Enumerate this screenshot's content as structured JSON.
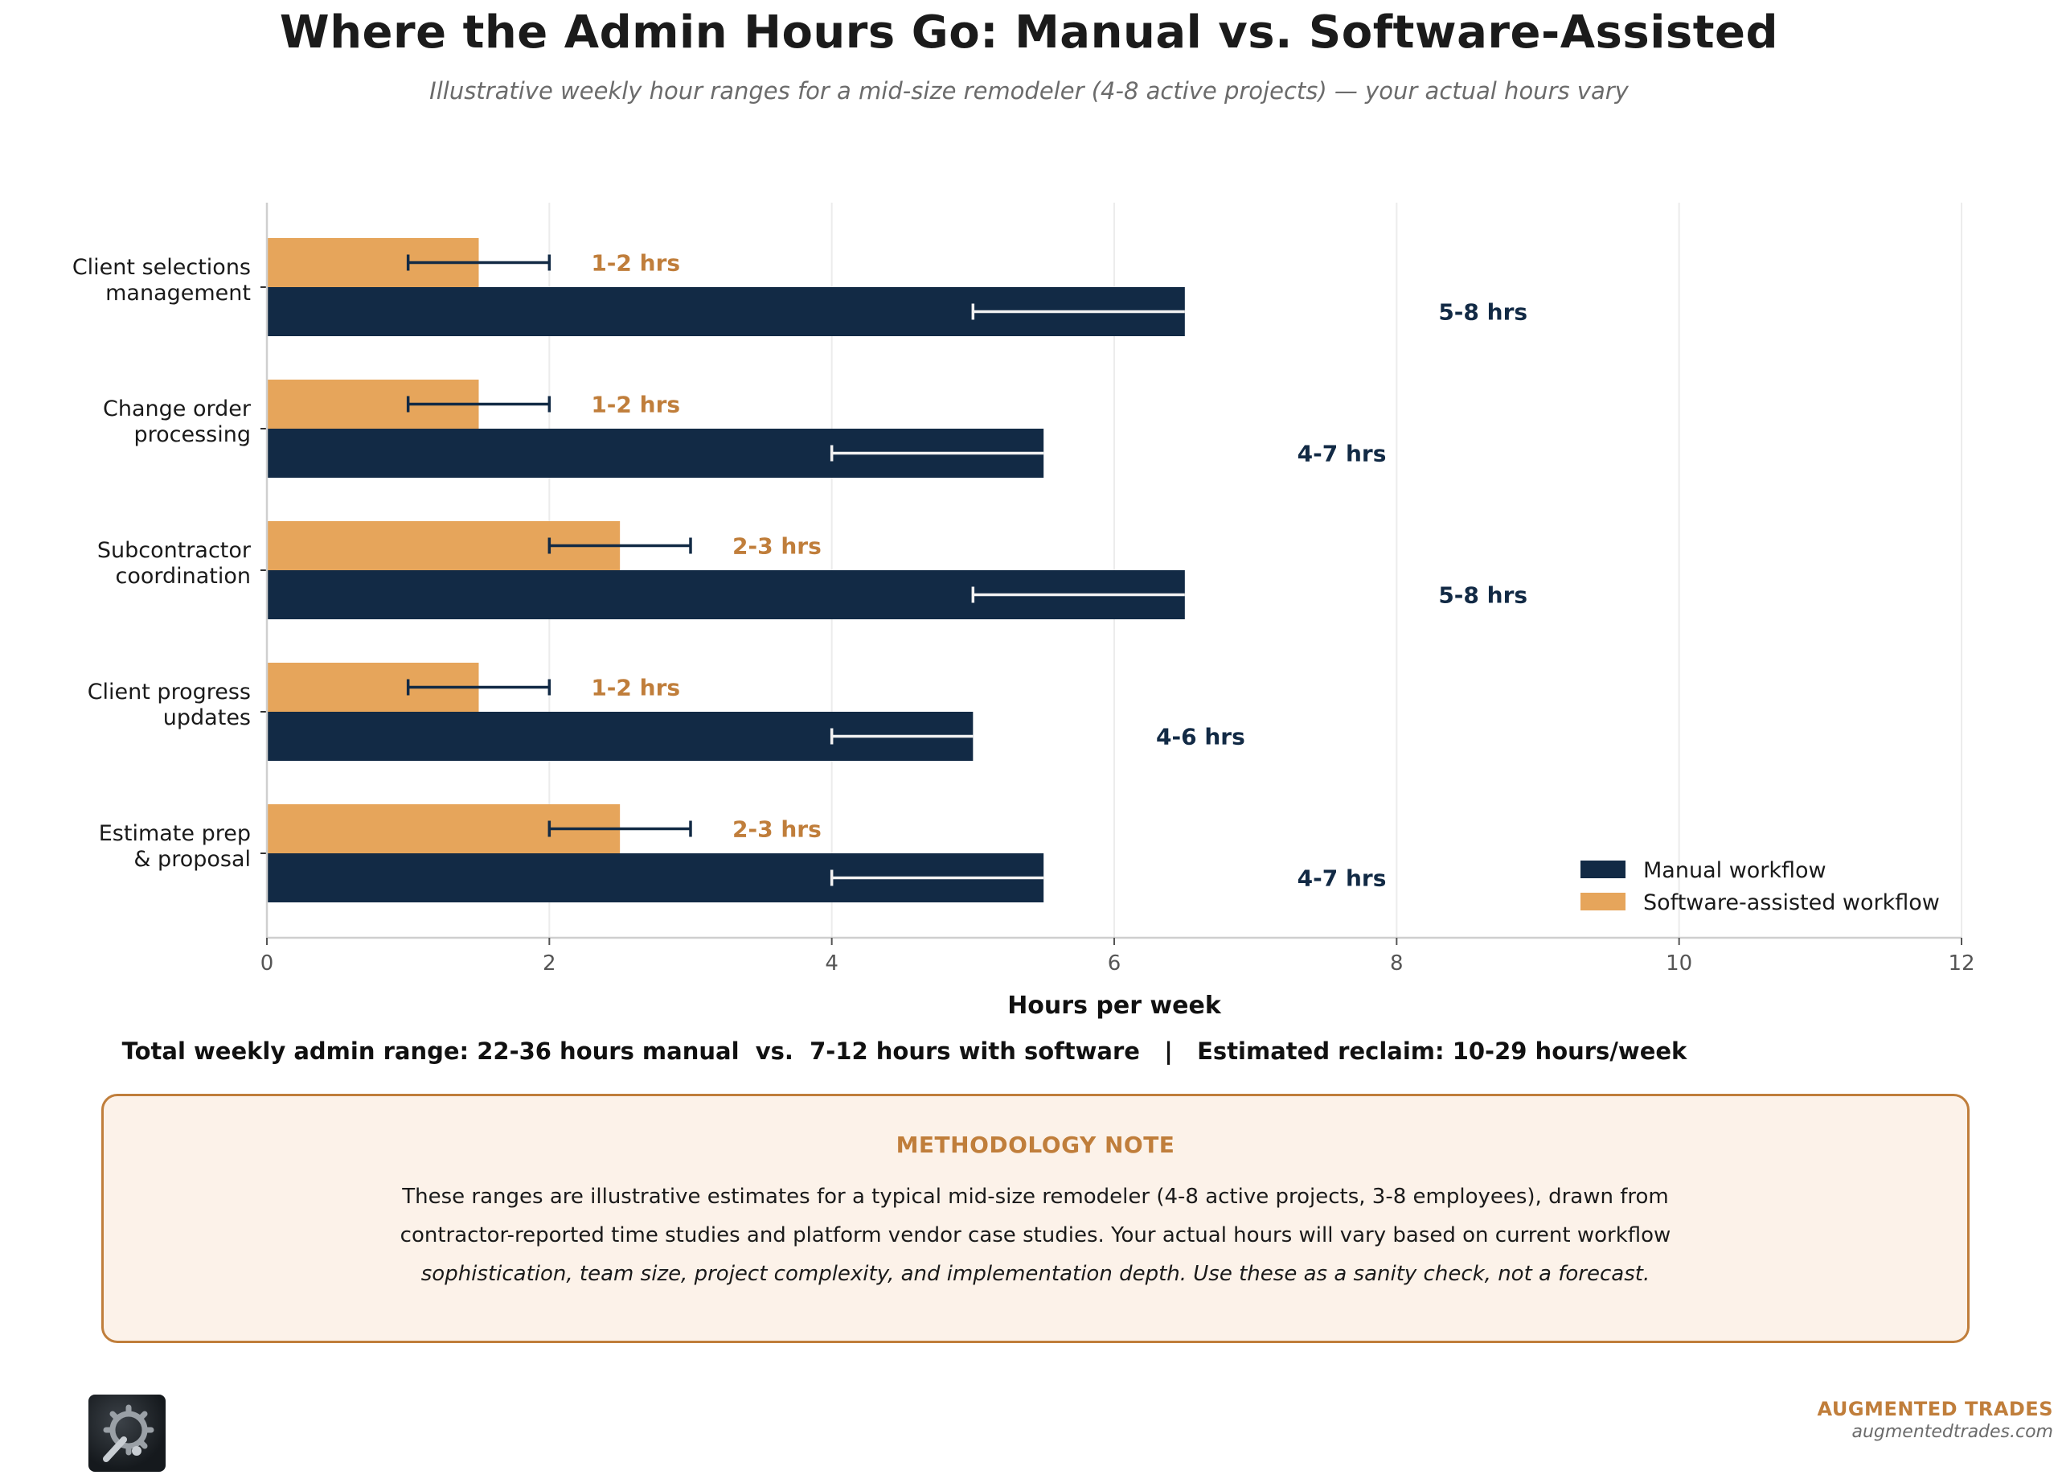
{
  "title": "Where the Admin Hours Go: Manual vs. Software-Assisted",
  "subtitle": "Illustrative weekly hour ranges for a mid-size remodeler (4-8 active projects) — your actual hours vary",
  "chart_data": {
    "type": "bar",
    "orientation": "horizontal",
    "categories": [
      "Client selections\nmanagement",
      "Change order\nprocessing",
      "Subcontractor\ncoordination",
      "Client progress\nupdates",
      "Estimate prep\n& proposal"
    ],
    "series": [
      {
        "name": "Manual workflow",
        "color": "#122a45",
        "values": [
          6.5,
          5.5,
          6.5,
          5.0,
          5.5
        ],
        "range_low": [
          5,
          4,
          5,
          4,
          4
        ],
        "range_high": [
          8,
          7,
          8,
          6,
          7
        ],
        "labels": [
          "5-8 hrs",
          "4-7 hrs",
          "5-8 hrs",
          "4-6 hrs",
          "4-7 hrs"
        ]
      },
      {
        "name": "Software-assisted workflow",
        "color": "#e6a55b",
        "values": [
          1.5,
          1.5,
          2.5,
          1.5,
          2.5
        ],
        "range_low": [
          1,
          1,
          2,
          1,
          2
        ],
        "range_high": [
          2,
          2,
          3,
          2,
          3
        ],
        "labels": [
          "1-2 hrs",
          "1-2 hrs",
          "2-3 hrs",
          "1-2 hrs",
          "2-3 hrs"
        ]
      }
    ],
    "xlabel": "Hours per week",
    "ylabel": "",
    "xlim": [
      0,
      12
    ],
    "xticks": [
      0,
      2,
      4,
      6,
      8,
      10,
      12
    ],
    "grid": "vertical",
    "legend_position": "lower-right",
    "label_color_manual": "#122a45",
    "label_color_software": "#c07e3b"
  },
  "totals_line": "Total weekly admin range: 22-36 hours manual  vs.  7-12 hours with software   |   Estimated reclaim: 10-29 hours/week",
  "methodology": {
    "heading": "METHODOLOGY NOTE",
    "line1": "These ranges are illustrative estimates for a typical mid-size remodeler (4-8 active projects, 3-8 employees), drawn from",
    "line2": "contractor-reported time studies and platform vendor case studies. Your actual hours will vary based on current workflow",
    "line3": "sophistication, team size, project complexity, and implementation depth. Use these as a sanity check, not a forecast."
  },
  "branding": {
    "logo_icon": "gear-wrench-logo-icon",
    "name": "AUGMENTED TRADES",
    "url": "augmentedtrades.com"
  },
  "colors": {
    "accent": "#c07e3b",
    "navy": "#122a45",
    "orange": "#e6a55b",
    "note_background": "#fcf2e9"
  }
}
